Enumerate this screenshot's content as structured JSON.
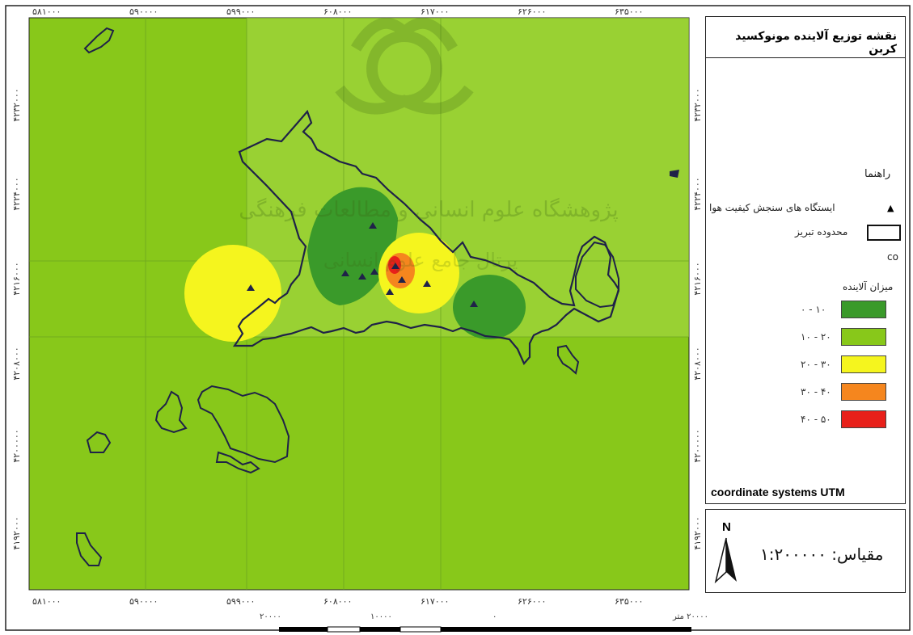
{
  "map": {
    "title": "نقشه توزیع آلاینده مونوکسید کربن",
    "x_ticks_top": [
      "۵۸۱۰۰۰",
      "۵۹۰۰۰۰",
      "۵۹۹۰۰۰",
      "۶۰۸۰۰۰",
      "۶۱۷۰۰۰",
      "۶۲۶۰۰۰",
      "۶۳۵۰۰۰"
    ],
    "x_ticks_bottom": [
      "۵۸۱۰۰۰",
      "۵۹۰۰۰۰",
      "۵۹۹۰۰۰",
      "۶۰۸۰۰۰",
      "۶۱۷۰۰۰",
      "۶۲۶۰۰۰",
      "۶۳۵۰۰۰"
    ],
    "y_ticks": [
      "۴۲۳۲۰۰۰",
      "۴۲۲۴۰۰۰",
      "۴۲۱۶۰۰۰",
      "۴۲۰۸۰۰۰",
      "۴۲۰۰۰۰۰",
      "۴۱۹۲۰۰۰"
    ],
    "watermark_text": "پژوهشگاه علوم انسانی و مطالعات فرهنگی",
    "watermark_text2": "پرتال جامع علوم انسانی"
  },
  "legend": {
    "heading": "راهنما",
    "station_label": "ایستگاه های سنجش کیفیت هوا",
    "boundary_label": "محدوده تبریز",
    "pollutant_code": "co",
    "amount_label": "میزان آلاینده",
    "classes": [
      {
        "label": "۱۰ - ۰",
        "color": "#3a9a2a"
      },
      {
        "label": "۲۰ - ۱۰",
        "color": "#88c81a"
      },
      {
        "label": "۳۰ - ۲۰",
        "color": "#f5f51e"
      },
      {
        "label": "۴۰ - ۳۰",
        "color": "#f5861e"
      },
      {
        "label": "۵۰ - ۴۰",
        "color": "#e8201a"
      }
    ],
    "coordinate_system": "coordinate systems UTM"
  },
  "scale": {
    "north": "N",
    "label": "مقیاس: ۱:۲۰۰۰۰۰",
    "bar_labels": [
      "۲۰۰۰۰",
      "۱۰۰۰۰",
      "۰",
      "۲۰۰۰۰ متر"
    ]
  },
  "colors": {
    "background_green": "#88c81a",
    "low_green": "#3a9a2a",
    "yellow": "#f5f51e",
    "orange": "#f5861e",
    "red": "#e8201a",
    "boundary": "#1f2248"
  }
}
